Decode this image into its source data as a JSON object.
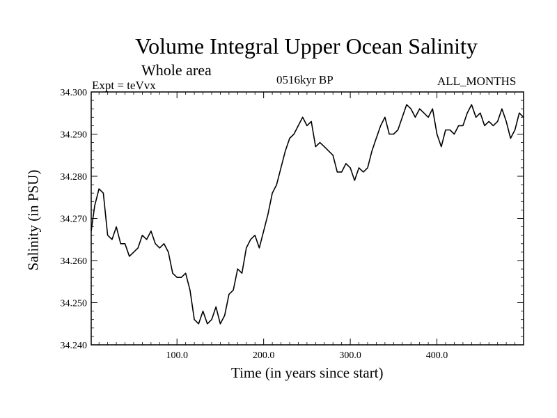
{
  "chart_data": {
    "type": "line",
    "title": "Volume Integral Upper Ocean Salinity",
    "subtitle": "Whole area",
    "experiment_label": "Expt = teVvx",
    "period_label": "0516kyr BP",
    "months_label": "ALL_MONTHS",
    "xlabel": "Time (in years since start)",
    "ylabel": "Salinity (in PSU)",
    "xlim": [
      1,
      500
    ],
    "ylim": [
      34.24,
      34.3
    ],
    "x_ticks": [
      "100.0",
      "200.0",
      "300.0",
      "400.0"
    ],
    "y_ticks": [
      "34.240",
      "34.250",
      "34.260",
      "34.270",
      "34.280",
      "34.290",
      "34.300"
    ],
    "grid": false,
    "line_color": "#000000",
    "series": [
      {
        "x": [
          1,
          5,
          10,
          15,
          20,
          25,
          30,
          35,
          40,
          45,
          50,
          55,
          60,
          65,
          70,
          75,
          80,
          85,
          90,
          95,
          100,
          105,
          110,
          115,
          120,
          125,
          130,
          135,
          140,
          145,
          150,
          155,
          160,
          165,
          170,
          175,
          180,
          185,
          190,
          195,
          200,
          205,
          210,
          215,
          220,
          225,
          230,
          235,
          240,
          245,
          250,
          255,
          260,
          265,
          270,
          275,
          280,
          285,
          290,
          295,
          300,
          305,
          310,
          315,
          320,
          325,
          330,
          335,
          340,
          345,
          350,
          355,
          360,
          365,
          370,
          375,
          380,
          385,
          390,
          395,
          400,
          405,
          410,
          415,
          420,
          425,
          430,
          435,
          440,
          445,
          450,
          455,
          460,
          465,
          470,
          475,
          480,
          485,
          490,
          495,
          500
        ],
        "y": [
          34.267,
          34.273,
          34.277,
          34.276,
          34.266,
          34.265,
          34.268,
          34.264,
          34.264,
          34.261,
          34.262,
          34.263,
          34.266,
          34.265,
          34.267,
          34.264,
          34.263,
          34.264,
          34.262,
          34.257,
          34.256,
          34.256,
          34.257,
          34.253,
          34.246,
          34.245,
          34.248,
          34.245,
          34.246,
          34.249,
          34.245,
          34.247,
          34.252,
          34.253,
          34.258,
          34.257,
          34.263,
          34.265,
          34.266,
          34.263,
          34.267,
          34.271,
          34.276,
          34.278,
          34.282,
          34.286,
          34.289,
          34.29,
          34.292,
          34.294,
          34.292,
          34.293,
          34.287,
          34.288,
          34.287,
          34.286,
          34.285,
          34.281,
          34.281,
          34.283,
          34.282,
          34.279,
          34.282,
          34.281,
          34.282,
          34.286,
          34.289,
          34.292,
          34.294,
          34.29,
          34.29,
          34.291,
          34.294,
          34.297,
          34.296,
          34.294,
          34.296,
          34.295,
          34.294,
          34.296,
          34.29,
          34.287,
          34.291,
          34.291,
          34.29,
          34.292,
          34.292,
          34.295,
          34.297,
          34.294,
          34.295,
          34.292,
          34.293,
          34.292,
          34.293,
          34.296,
          34.293,
          34.289,
          34.291,
          34.295,
          34.294
        ]
      }
    ]
  }
}
